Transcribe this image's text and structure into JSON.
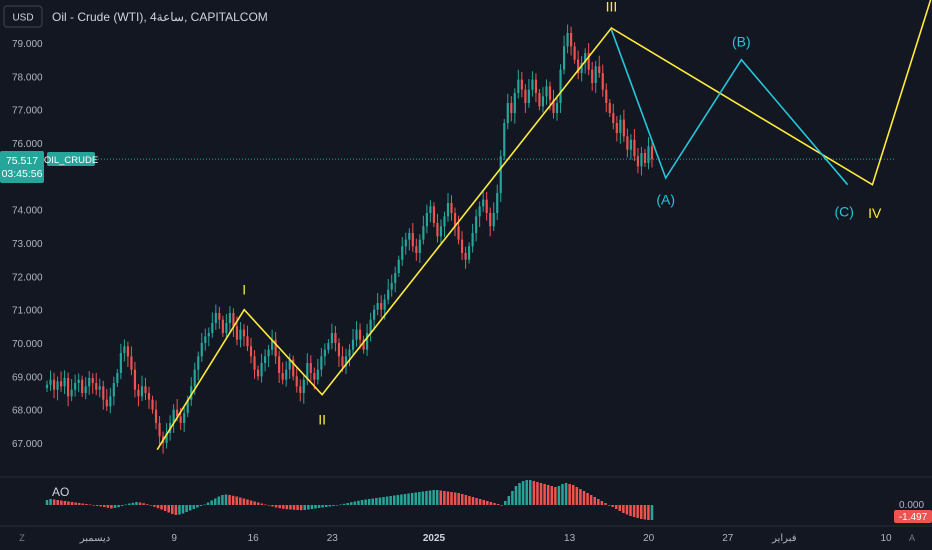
{
  "header": {
    "currency_button": "USD",
    "symbol_title": "Oil - Crude (WTI), 4ساعة, CAPITALCOM"
  },
  "price_panel": {
    "current_price": "75.517",
    "countdown": "03:45:56",
    "symbol_tag": "OIL_CRUDE",
    "colors": {
      "up": "#26a69a",
      "down": "#ef5350",
      "price_line": "#26a69a",
      "wave_yellow": "#ffeb3b",
      "wave_cyan": "#26c6da"
    }
  },
  "oscillator": {
    "label": "AO",
    "zero_label": "0.000",
    "value_label": "-1.497"
  },
  "bottom_bar": {
    "left_icon": "Z",
    "right_icon": "A"
  },
  "chart_data": {
    "type": "candlestick",
    "y_ticks": [
      "79.000",
      "78.000",
      "77.000",
      "76.000",
      "75.000",
      "74.000",
      "73.000",
      "72.000",
      "71.000",
      "70.000",
      "69.000",
      "68.000",
      "67.000"
    ],
    "ylim": [
      66.4,
      79.7
    ],
    "x_ticks": [
      {
        "label": "ديسمبر",
        "day": 0
      },
      {
        "label": "9",
        "day": 7
      },
      {
        "label": "16",
        "day": 14
      },
      {
        "label": "23",
        "day": 21
      },
      {
        "label": "2025",
        "day": 30
      },
      {
        "label": "13",
        "day": 42
      },
      {
        "label": "20",
        "day": 49
      },
      {
        "label": "27",
        "day": 56
      },
      {
        "label": "فبراير",
        "day": 61
      },
      {
        "label": "10",
        "day": 70
      }
    ],
    "price_line": 75.517,
    "yellow_wave": [
      {
        "day": 5.5,
        "price": 66.8
      },
      {
        "day": 13.2,
        "price": 71.0
      },
      {
        "day": 20.1,
        "price": 68.45
      },
      {
        "day": 45.7,
        "price": 79.45
      },
      {
        "day": 68.8,
        "price": 74.75
      },
      {
        "day": 76.0,
        "price": 82.5
      }
    ],
    "cyan_wave": [
      {
        "day": 45.7,
        "price": 79.4
      },
      {
        "day": 50.5,
        "price": 74.95
      },
      {
        "day": 57.2,
        "price": 78.5
      },
      {
        "day": 66.6,
        "price": 74.75
      }
    ],
    "wave_labels": [
      {
        "text": "I",
        "day": 13.2,
        "price": 71.6,
        "color": "yellow"
      },
      {
        "text": "II",
        "day": 20.1,
        "price": 67.7,
        "color": "yellow"
      },
      {
        "text": "III",
        "day": 45.7,
        "price": 80.1,
        "color": "yellow"
      },
      {
        "text": "IV",
        "day": 69.0,
        "price": 73.9,
        "color": "yellow"
      },
      {
        "text": "(A)",
        "day": 50.5,
        "price": 74.3,
        "color": "cyan"
      },
      {
        "text": "(B)",
        "day": 57.2,
        "price": 79.05,
        "color": "cyan"
      },
      {
        "text": "(C)",
        "day": 66.3,
        "price": 73.95,
        "color": "cyan"
      }
    ],
    "closes": [
      68.75,
      68.9,
      68.6,
      68.85,
      68.7,
      68.95,
      68.4,
      68.6,
      68.8,
      68.9,
      68.5,
      68.7,
      68.95,
      68.8,
      68.6,
      68.7,
      68.3,
      68.1,
      68.4,
      68.8,
      69.1,
      69.7,
      69.9,
      69.6,
      69.2,
      68.6,
      68.4,
      68.7,
      68.5,
      68.3,
      68.0,
      67.6,
      67.2,
      67.0,
      67.3,
      67.6,
      68.0,
      67.8,
      67.6,
      67.9,
      68.3,
      68.7,
      69.2,
      69.6,
      70.0,
      70.2,
      70.3,
      70.6,
      70.9,
      70.7,
      70.3,
      70.6,
      70.9,
      70.5,
      70.1,
      70.4,
      70.2,
      69.9,
      69.6,
      69.2,
      69.0,
      69.4,
      69.6,
      69.8,
      70.1,
      69.6,
      69.1,
      68.9,
      69.2,
      69.5,
      69.0,
      68.7,
      68.5,
      68.9,
      69.4,
      69.1,
      68.9,
      69.2,
      69.6,
      69.8,
      70.0,
      70.3,
      70.0,
      69.6,
      69.3,
      69.6,
      69.8,
      70.1,
      70.4,
      70.1,
      69.8,
      70.3,
      70.7,
      71.0,
      71.2,
      71.0,
      71.3,
      71.6,
      71.8,
      72.1,
      72.5,
      72.9,
      73.1,
      73.3,
      72.9,
      72.7,
      73.1,
      73.5,
      73.9,
      74.1,
      73.6,
      73.2,
      73.5,
      73.8,
      74.2,
      73.9,
      73.5,
      73.1,
      72.7,
      72.5,
      72.9,
      73.3,
      73.8,
      74.1,
      74.3,
      73.9,
      73.5,
      73.9,
      74.5,
      75.6,
      76.6,
      77.2,
      76.9,
      77.5,
      77.9,
      77.6,
      77.2,
      77.6,
      77.9,
      77.5,
      77.1,
      77.4,
      77.7,
      77.3,
      76.9,
      77.2,
      78.2,
      78.9,
      79.3,
      78.9,
      78.5,
      78.1,
      78.4,
      78.7,
      78.2,
      77.8,
      78.3,
      78.1,
      77.6,
      77.2,
      76.9,
      76.6,
      76.3,
      76.7,
      76.2,
      75.8,
      76.1,
      75.6,
      75.3,
      75.7,
      75.4,
      75.9,
      75.517
    ],
    "ao": [
      0.5,
      0.6,
      0.55,
      0.5,
      0.45,
      0.4,
      0.35,
      0.3,
      0.25,
      0.2,
      0.15,
      0.1,
      0.05,
      -0.05,
      -0.1,
      -0.15,
      -0.2,
      -0.28,
      -0.35,
      -0.3,
      -0.22,
      -0.1,
      0.05,
      0.15,
      0.22,
      0.3,
      0.25,
      0.18,
      0.08,
      -0.05,
      -0.18,
      -0.32,
      -0.45,
      -0.6,
      -0.75,
      -0.9,
      -1.0,
      -0.95,
      -0.85,
      -0.7,
      -0.55,
      -0.4,
      -0.25,
      -0.1,
      0.05,
      0.25,
      0.45,
      0.65,
      0.85,
      1.0,
      1.05,
      1.0,
      0.92,
      0.85,
      0.75,
      0.65,
      0.55,
      0.45,
      0.35,
      0.25,
      0.15,
      0.05,
      -0.05,
      -0.15,
      -0.25,
      -0.32,
      -0.38,
      -0.42,
      -0.45,
      -0.48,
      -0.5,
      -0.52,
      -0.5,
      -0.45,
      -0.4,
      -0.35,
      -0.3,
      -0.25,
      -0.2,
      -0.15,
      -0.1,
      -0.05,
      0.05,
      0.12,
      0.2,
      0.28,
      0.35,
      0.42,
      0.5,
      0.55,
      0.6,
      0.65,
      0.7,
      0.75,
      0.8,
      0.85,
      0.9,
      0.95,
      1.0,
      1.05,
      1.1,
      1.15,
      1.2,
      1.25,
      1.3,
      1.35,
      1.4,
      1.45,
      1.5,
      1.5,
      1.45,
      1.4,
      1.35,
      1.3,
      1.25,
      1.2,
      1.1,
      1.0,
      0.9,
      0.8,
      0.7,
      0.6,
      0.5,
      0.4,
      0.3,
      0.2,
      0.1,
      0.0,
      0.4,
      0.9,
      1.4,
      1.9,
      2.2,
      2.4,
      2.5,
      2.5,
      2.4,
      2.3,
      2.2,
      2.1,
      2.0,
      1.9,
      1.8,
      1.9,
      2.1,
      2.2,
      2.1,
      2.0,
      1.8,
      1.6,
      1.4,
      1.2,
      1.0,
      0.8,
      0.6,
      0.4,
      0.2,
      0.0,
      -0.2,
      -0.4,
      -0.6,
      -0.8,
      -0.95,
      -1.1,
      -1.2,
      -1.3,
      -1.4,
      -1.45,
      -1.5,
      -1.497
    ]
  }
}
